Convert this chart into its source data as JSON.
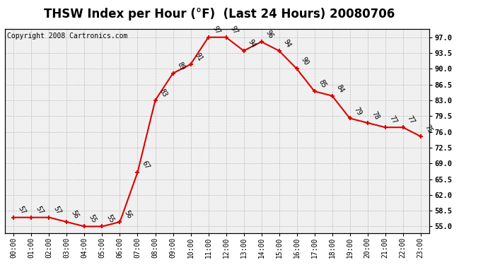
{
  "title": "THSW Index per Hour (°F)  (Last 24 Hours) 20080706",
  "copyright": "Copyright 2008 Cartronics.com",
  "hours": [
    0,
    1,
    2,
    3,
    4,
    5,
    6,
    7,
    8,
    9,
    10,
    11,
    12,
    13,
    14,
    15,
    16,
    17,
    18,
    19,
    20,
    21,
    22,
    23
  ],
  "values": [
    57,
    57,
    57,
    56,
    55,
    55,
    56,
    67,
    83,
    89,
    91,
    97,
    97,
    94,
    96,
    94,
    90,
    85,
    84,
    79,
    78,
    77,
    77,
    75
  ],
  "x_labels": [
    "00:00",
    "01:00",
    "02:00",
    "03:00",
    "04:00",
    "05:00",
    "06:00",
    "07:00",
    "08:00",
    "09:00",
    "10:00",
    "11:00",
    "12:00",
    "13:00",
    "14:00",
    "15:00",
    "16:00",
    "17:00",
    "18:00",
    "19:00",
    "20:00",
    "21:00",
    "22:00",
    "23:00"
  ],
  "y_ticks": [
    55.0,
    58.5,
    62.0,
    65.5,
    69.0,
    72.5,
    76.0,
    79.5,
    83.0,
    86.5,
    90.0,
    93.5,
    97.0
  ],
  "ylim": [
    53.5,
    98.8
  ],
  "xlim": [
    -0.5,
    23.5
  ],
  "line_color": "#dd0000",
  "marker_color": "#dd0000",
  "bg_color": "#ffffff",
  "plot_bg_color": "#f0f0f0",
  "grid_color": "#bbbbbb",
  "title_fontsize": 12,
  "label_fontsize": 7,
  "annot_fontsize": 7,
  "copyright_fontsize": 7
}
